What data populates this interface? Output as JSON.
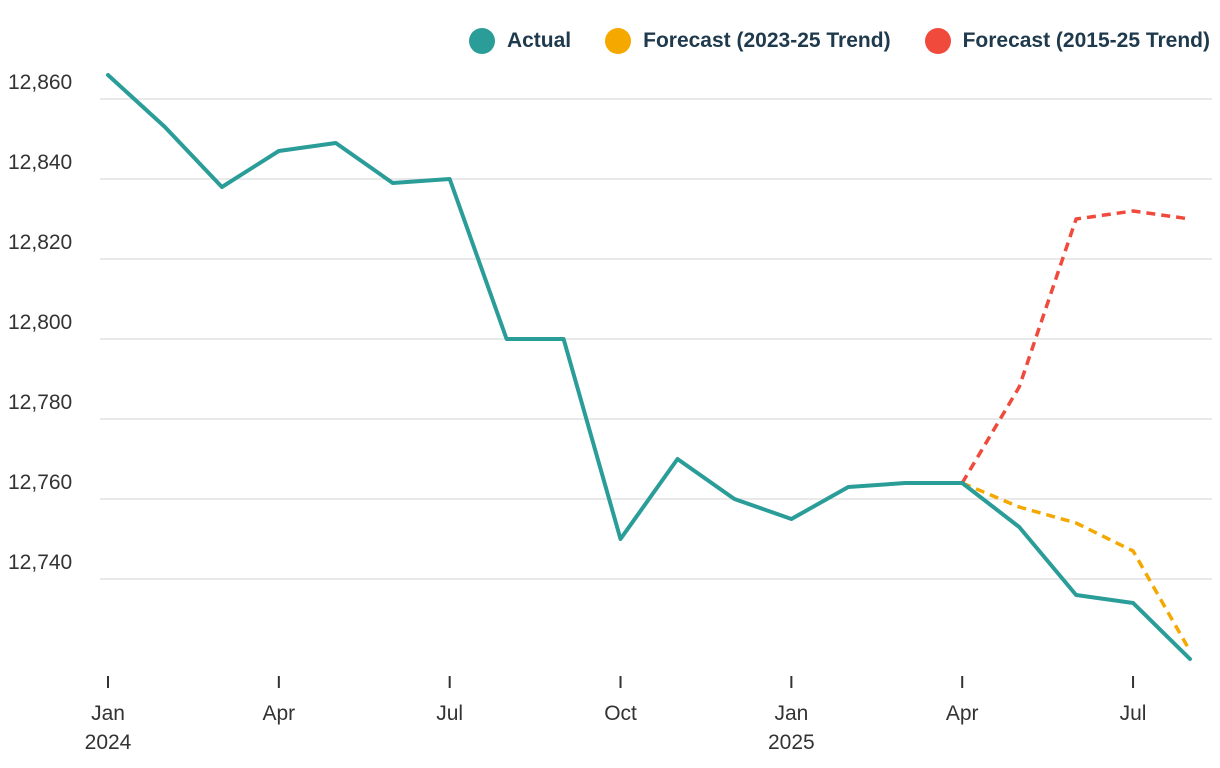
{
  "chart_data": {
    "type": "line",
    "x": [
      "2024-01",
      "2024-02",
      "2024-03",
      "2024-04",
      "2024-05",
      "2024-06",
      "2024-07",
      "2024-08",
      "2024-09",
      "2024-10",
      "2024-11",
      "2024-12",
      "2025-01",
      "2025-02",
      "2025-03",
      "2025-04",
      "2025-05",
      "2025-06",
      "2025-07",
      "2025-08"
    ],
    "series": [
      {
        "name": "Actual",
        "color": "#2a9d99",
        "dashed": false,
        "x": [
          "2024-01",
          "2024-02",
          "2024-03",
          "2024-04",
          "2024-05",
          "2024-06",
          "2024-07",
          "2024-08",
          "2024-09",
          "2024-10",
          "2024-11",
          "2024-12",
          "2025-01",
          "2025-02",
          "2025-03",
          "2025-04",
          "2025-05",
          "2025-06",
          "2025-07",
          "2025-08"
        ],
        "values": [
          12866,
          12853,
          12838,
          12847,
          12849,
          12839,
          12840,
          12800,
          12800,
          12750,
          12770,
          12760,
          12755,
          12763,
          12764,
          12764,
          12753,
          12736,
          12734,
          12720
        ]
      },
      {
        "name": "Forecast (2023-25 Trend)",
        "color": "#f5a800",
        "dashed": true,
        "x": [
          "2025-04",
          "2025-05",
          "2025-06",
          "2025-07",
          "2025-08"
        ],
        "values": [
          12764,
          12758,
          12754,
          12747,
          12722
        ]
      },
      {
        "name": "Forecast (2015-25 Trend)",
        "color": "#f04a3c",
        "dashed": true,
        "x": [
          "2025-04",
          "2025-05",
          "2025-06",
          "2025-07",
          "2025-08"
        ],
        "values": [
          12764,
          12788,
          12830,
          12832,
          12830
        ]
      }
    ],
    "y_ticks": [
      "12,740",
      "12,760",
      "12,780",
      "12,800",
      "12,820",
      "12,840",
      "12,860"
    ],
    "y_tick_values": [
      12740,
      12760,
      12780,
      12800,
      12820,
      12840,
      12860
    ],
    "ylim": [
      12716,
      12866
    ],
    "x_ticks": [
      {
        "x": "2024-01",
        "label": "Jan",
        "sublabel": "2024"
      },
      {
        "x": "2024-04",
        "label": "Apr",
        "sublabel": ""
      },
      {
        "x": "2024-07",
        "label": "Jul",
        "sublabel": ""
      },
      {
        "x": "2024-10",
        "label": "Oct",
        "sublabel": ""
      },
      {
        "x": "2025-01",
        "label": "Jan",
        "sublabel": "2025"
      },
      {
        "x": "2025-04",
        "label": "Apr",
        "sublabel": ""
      },
      {
        "x": "2025-07",
        "label": "Jul",
        "sublabel": ""
      }
    ],
    "grid": true,
    "legend_position": "top-right",
    "title": "",
    "xlabel": "",
    "ylabel": ""
  }
}
